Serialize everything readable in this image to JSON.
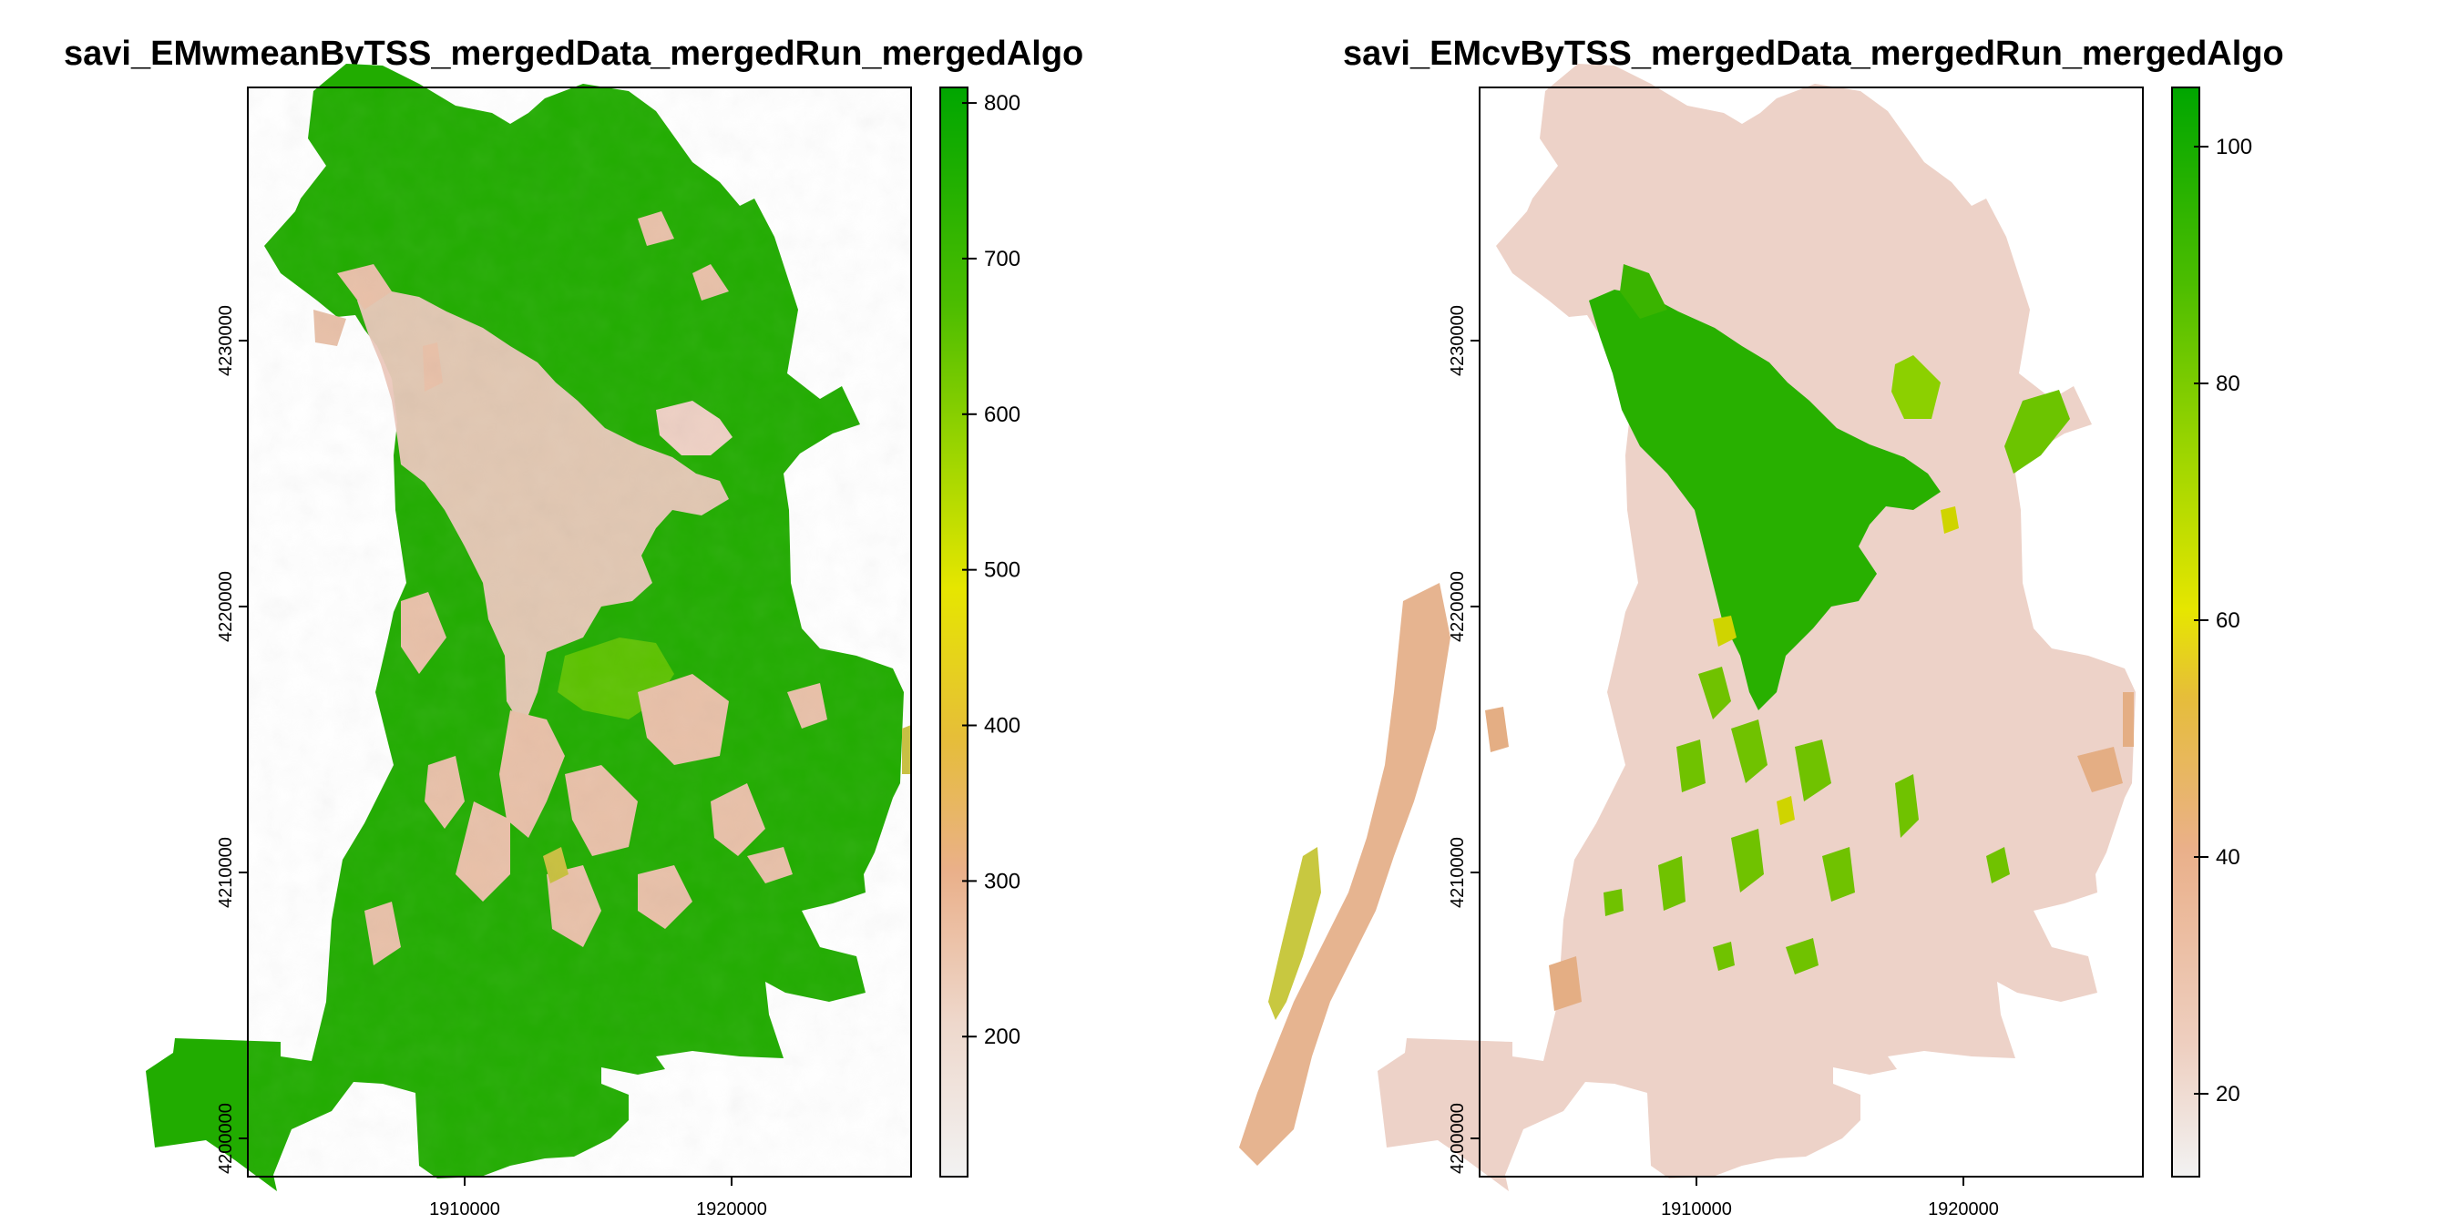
{
  "panels": [
    {
      "title": "savi_EMwmeanByTSS_mergedData_mergedRun_mergedAlgo",
      "x_ticks": [
        "1910000",
        "1920000"
      ],
      "y_ticks": [
        "4200000",
        "4210000",
        "4220000",
        "4230000"
      ],
      "legend_ticks": [
        "800",
        "700",
        "600",
        "500",
        "400",
        "300",
        "200"
      ],
      "legend_range": [
        110,
        810
      ]
    },
    {
      "title": "savi_EMcvByTSS_mergedData_mergedRun_mergedAlgo",
      "x_ticks": [
        "1910000",
        "1920000"
      ],
      "y_ticks": [
        "4200000",
        "4210000",
        "4220000",
        "4230000"
      ],
      "legend_ticks": [
        "100",
        "80",
        "60",
        "40",
        "20"
      ],
      "legend_range": [
        13,
        105
      ]
    }
  ],
  "colors": {
    "ramp": [
      "#f2f2f2",
      "#eec9b9",
      "#eab08a",
      "#e6bd3a",
      "#e6e600",
      "#9fd600",
      "#4cbd00",
      "#00a600"
    ],
    "frame": "#000000"
  }
}
